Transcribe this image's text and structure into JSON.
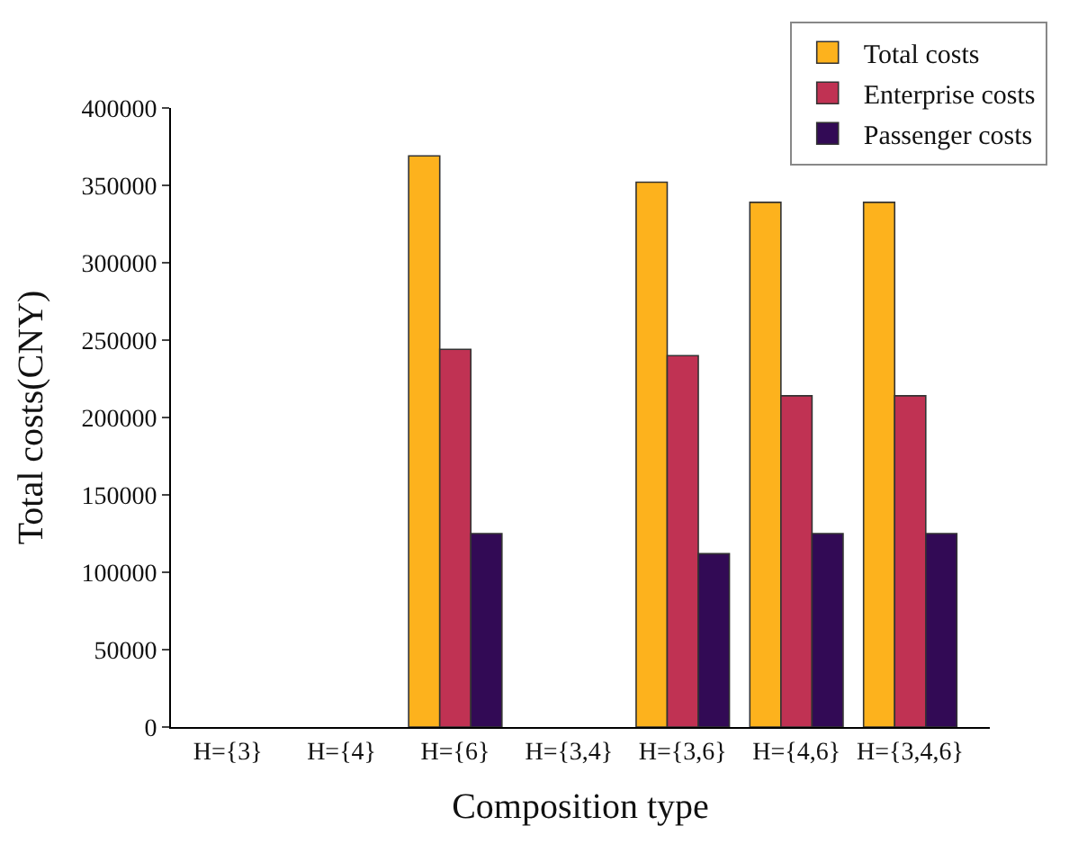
{
  "chart_data": {
    "type": "bar",
    "xlabel": "Composition type",
    "ylabel": "Total costs(CNY)",
    "categories": [
      "H={3}",
      "H={4}",
      "H={6}",
      "H={3,4}",
      "H={3,6}",
      "H={4,6}",
      "H={3,4,6}"
    ],
    "series": [
      {
        "name": "Total costs",
        "color": "#fdb21d",
        "values": [
          null,
          null,
          369000,
          null,
          352000,
          339000,
          339000
        ]
      },
      {
        "name": "Enterprise costs",
        "color": "#c03253",
        "values": [
          null,
          null,
          244000,
          null,
          240000,
          214000,
          214000
        ]
      },
      {
        "name": "Passenger costs",
        "color": "#320a55",
        "values": [
          null,
          null,
          125000,
          null,
          112000,
          125000,
          125000
        ]
      }
    ],
    "ylim": [
      0,
      400000
    ],
    "yticks": [
      0,
      50000,
      100000,
      150000,
      200000,
      250000,
      300000,
      350000,
      400000
    ],
    "legend": "top right"
  }
}
